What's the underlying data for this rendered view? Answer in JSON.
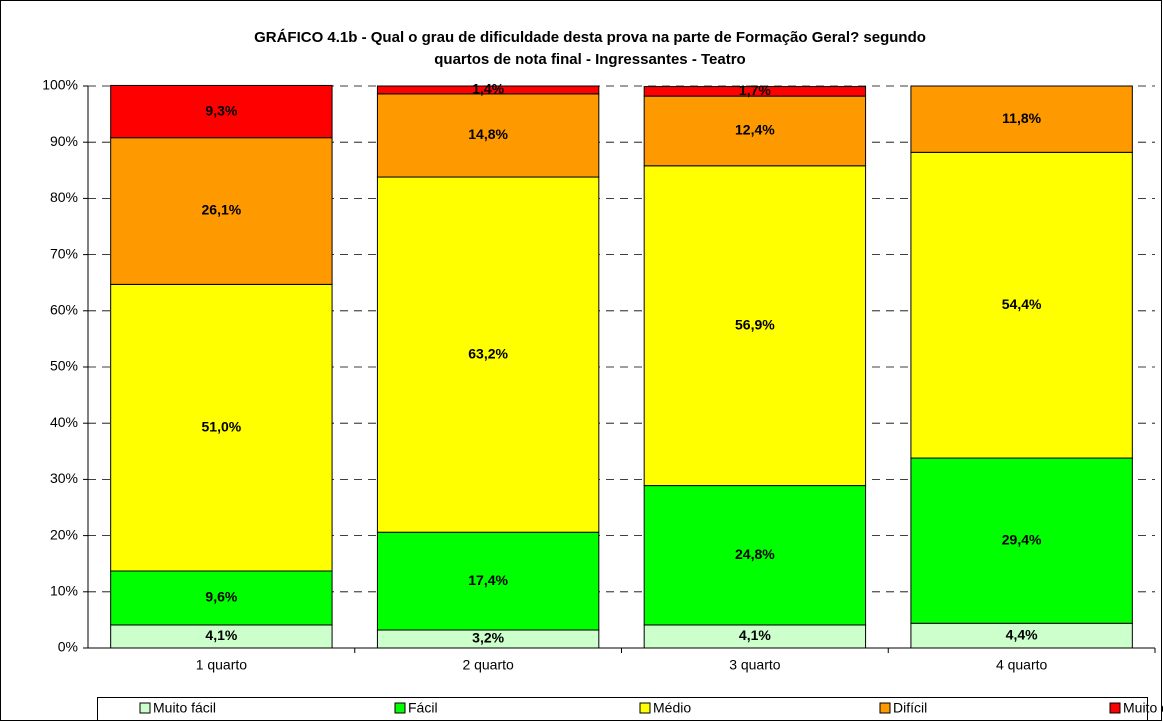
{
  "chart_data": {
    "type": "stacked_bar",
    "title": [
      "GRÁFICO 4.1b - Qual o grau de dificuldade desta prova na parte de Formação Geral? segundo",
      "quartos de nota final  - Ingressantes - Teatro"
    ],
    "categories": [
      "1 quarto",
      "2 quarto",
      "3 quarto",
      "4 quarto"
    ],
    "series": [
      {
        "name": "Muito fácil",
        "color": "#ccffcc",
        "values": [
          4.1,
          3.2,
          4.1,
          4.4
        ],
        "value_labels": [
          "4,1%",
          "3,2%",
          "4,1%",
          "4,4%"
        ]
      },
      {
        "name": "Fácil",
        "color": "#00ff00",
        "values": [
          9.6,
          17.4,
          24.8,
          29.4
        ],
        "value_labels": [
          "9,6%",
          "17,4%",
          "24,8%",
          "29,4%"
        ]
      },
      {
        "name": "Médio",
        "color": "#ffff00",
        "values": [
          51.0,
          63.2,
          56.9,
          54.4
        ],
        "value_labels": [
          "51,0%",
          "63,2%",
          "56,9%",
          "54,4%"
        ]
      },
      {
        "name": "Difícil",
        "color": "#ff9900",
        "values": [
          26.1,
          14.8,
          12.4,
          11.8
        ],
        "value_labels": [
          "26,1%",
          "14,8%",
          "12,4%",
          "11,8%"
        ]
      },
      {
        "name": "Muito difícil",
        "color": "#ff0000",
        "values": [
          9.3,
          1.4,
          1.7,
          null
        ],
        "value_labels": [
          "9,3%",
          "1,4%",
          "1,7%",
          null
        ]
      }
    ],
    "ylim": [
      0,
      100
    ],
    "yticks": [
      {
        "value": 0,
        "label": "0%"
      },
      {
        "value": 10,
        "label": "10%"
      },
      {
        "value": 20,
        "label": "20%"
      },
      {
        "value": 30,
        "label": "30%"
      },
      {
        "value": 40,
        "label": "40%"
      },
      {
        "value": 50,
        "label": "50%"
      },
      {
        "value": 60,
        "label": "60%"
      },
      {
        "value": 70,
        "label": "70%"
      },
      {
        "value": 80,
        "label": "80%"
      },
      {
        "value": 90,
        "label": "90%"
      },
      {
        "value": 100,
        "label": "100%"
      }
    ],
    "grid": true,
    "legend": "bottom"
  }
}
